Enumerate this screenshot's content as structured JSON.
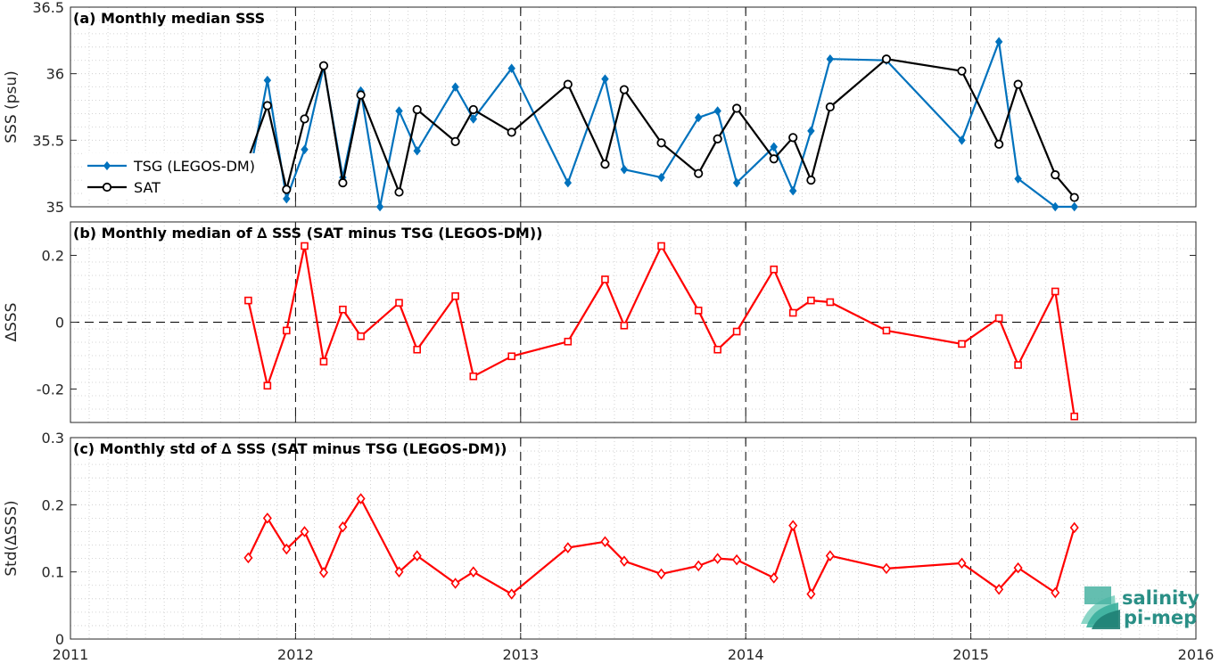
{
  "chart_data": [
    {
      "type": "line",
      "title": "(a) Monthly median SSS",
      "ylabel": "SSS (psu)",
      "xlim": [
        2011,
        2016
      ],
      "ylim": [
        35,
        36.5
      ],
      "yticks": [
        "35",
        "35.5",
        "36",
        "36.5"
      ],
      "grid": "dotted minor",
      "legend_position": "left",
      "series": [
        {
          "name": "TSG (LEGOS-DM)",
          "color": "#0072bd",
          "marker": "diamond",
          "x": [
            2011.79,
            2011.875,
            2011.96,
            2012.04,
            2012.125,
            2012.21,
            2012.29,
            2012.375,
            2012.46,
            2012.54,
            2012.71,
            2012.79,
            2012.96,
            2013.21,
            2013.375,
            2013.46,
            2013.625,
            2013.79,
            2013.875,
            2013.96,
            2014.125,
            2014.21,
            2014.29,
            2014.375,
            2014.625,
            2014.96,
            2015.125,
            2015.21,
            2015.375,
            2015.46
          ],
          "y": [
            35.19,
            35.95,
            35.06,
            35.43,
            36.05,
            35.22,
            35.87,
            35.0,
            35.72,
            35.42,
            35.9,
            35.66,
            36.04,
            35.18,
            35.96,
            35.28,
            35.22,
            35.67,
            35.72,
            35.18,
            35.45,
            35.12,
            35.57,
            36.11,
            36.1,
            35.5,
            36.24,
            35.21,
            35.0,
            35.0
          ]
        },
        {
          "name": "SAT",
          "color": "#000000",
          "marker": "circle",
          "x": [
            2011.79,
            2011.875,
            2011.96,
            2012.04,
            2012.125,
            2012.21,
            2012.29,
            2012.46,
            2012.54,
            2012.71,
            2012.79,
            2012.96,
            2013.21,
            2013.375,
            2013.46,
            2013.625,
            2013.79,
            2013.875,
            2013.96,
            2014.125,
            2014.21,
            2014.29,
            2014.375,
            2014.625,
            2014.96,
            2015.125,
            2015.21,
            2015.375,
            2015.46
          ],
          "y": [
            35.36,
            35.76,
            35.13,
            35.66,
            36.06,
            35.18,
            35.84,
            35.11,
            35.73,
            35.49,
            35.73,
            35.56,
            35.92,
            35.32,
            35.88,
            35.48,
            35.25,
            35.51,
            35.74,
            35.36,
            35.52,
            35.2,
            35.75,
            36.11,
            36.02,
            35.47,
            35.92,
            35.24,
            35.07
          ]
        }
      ]
    },
    {
      "type": "line",
      "title": "(b) Monthly median of ∆ SSS (SAT minus TSG (LEGOS-DM))",
      "ylabel": "∆SSS",
      "xlim": [
        2011,
        2016
      ],
      "ylim": [
        -0.3,
        0.3
      ],
      "yticks": [
        "-0.2",
        "0",
        "0.2"
      ],
      "grid": "dotted minor",
      "series": [
        {
          "color": "#ff0000",
          "marker": "square",
          "x": [
            2011.79,
            2011.875,
            2011.96,
            2012.04,
            2012.125,
            2012.21,
            2012.29,
            2012.46,
            2012.54,
            2012.71,
            2012.79,
            2012.96,
            2013.21,
            2013.375,
            2013.46,
            2013.625,
            2013.79,
            2013.875,
            2013.96,
            2014.125,
            2014.21,
            2014.29,
            2014.375,
            2014.625,
            2014.96,
            2015.125,
            2015.21,
            2015.375,
            2015.46
          ],
          "y": [
            0.065,
            -0.19,
            -0.025,
            0.228,
            -0.118,
            0.038,
            -0.042,
            0.058,
            -0.082,
            0.078,
            -0.162,
            -0.102,
            -0.058,
            0.128,
            -0.01,
            0.228,
            0.035,
            -0.082,
            -0.028,
            0.158,
            0.028,
            0.065,
            0.06,
            -0.025,
            -0.065,
            0.012,
            -0.128,
            0.092,
            -0.282
          ]
        }
      ]
    },
    {
      "type": "line",
      "title": "(c) Monthly std of ∆ SSS (SAT minus TSG (LEGOS-DM))",
      "ylabel": "Std(∆SSS)",
      "xlim": [
        2011,
        2016
      ],
      "ylim": [
        0,
        0.3
      ],
      "yticks": [
        "0",
        "0.1",
        "0.2",
        "0.3"
      ],
      "xticks": [
        "2011",
        "2012",
        "2013",
        "2014",
        "2015",
        "2016"
      ],
      "grid": "dotted minor",
      "series": [
        {
          "color": "#ff0000",
          "marker": "diamond",
          "x": [
            2011.79,
            2011.875,
            2011.96,
            2012.04,
            2012.125,
            2012.21,
            2012.29,
            2012.46,
            2012.54,
            2012.71,
            2012.79,
            2012.96,
            2013.21,
            2013.375,
            2013.46,
            2013.625,
            2013.79,
            2013.875,
            2013.96,
            2014.125,
            2014.21,
            2014.29,
            2014.375,
            2014.625,
            2014.96,
            2015.125,
            2015.21,
            2015.375,
            2015.46
          ],
          "y": [
            0.121,
            0.18,
            0.134,
            0.16,
            0.099,
            0.167,
            0.209,
            0.1,
            0.124,
            0.083,
            0.1,
            0.067,
            0.136,
            0.145,
            0.116,
            0.097,
            0.109,
            0.12,
            0.118,
            0.091,
            0.169,
            0.067,
            0.124,
            0.105,
            0.113,
            0.074,
            0.106,
            0.069,
            0.166
          ]
        }
      ]
    }
  ],
  "logo": {
    "line1": "salinity",
    "line2": "pi-mep"
  },
  "colors": {
    "tsg": "#0072bd",
    "sat": "#000000",
    "delta": "#ff0000",
    "logo": "#2a8f86"
  }
}
